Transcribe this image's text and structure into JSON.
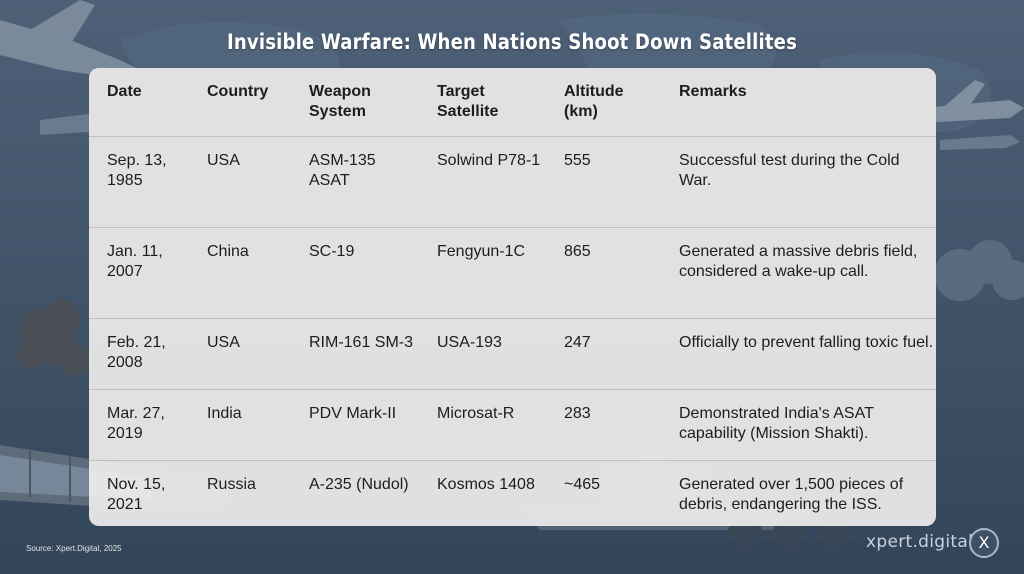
{
  "title": "Invisible Warfare: When Nations Shoot Down Satellites",
  "table": {
    "headers": [
      "Date",
      "Country",
      "Weapon System",
      "Target Satellite",
      "Altitude (km)",
      "Remarks"
    ],
    "rows": [
      [
        "Sep. 13, 1985",
        "USA",
        "ASM-135 ASAT",
        "Solwind P78-1",
        "555",
        "Successful test during the Cold War."
      ],
      [
        "Jan. 11, 2007",
        "China",
        "SC-19",
        "Fengyun-1C",
        "865",
        "Generated a massive debris field, considered a wake-up call."
      ],
      [
        "Feb. 21, 2008",
        "USA",
        "RIM-161 SM-3",
        "USA-193",
        "247",
        "Officially to prevent falling toxic fuel."
      ],
      [
        "Mar. 27, 2019",
        "India",
        "PDV Mark-II",
        "Microsat-R",
        "283",
        "Demonstrated India's ASAT capability (Mission Shakti)."
      ],
      [
        "Nov. 15, 2021",
        "Russia",
        "A-235 (Nudol)",
        "Kosmos 1408",
        "~465",
        "Generated over 1,500 pieces of debris, endangering the ISS."
      ]
    ]
  },
  "footer": {
    "source": "Source: Xpert.Digital, 2025",
    "brand": "xpert.digital",
    "close_label": "X",
    "close_icon": "close-icon"
  }
}
